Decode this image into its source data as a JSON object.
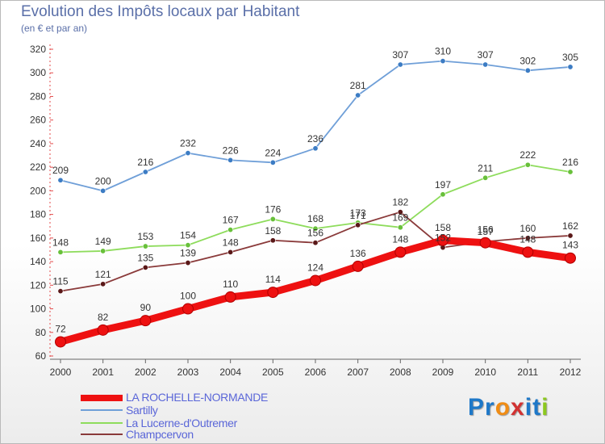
{
  "header": {
    "title": "Evolution des Impôts locaux par Habitant",
    "subtitle": "(en € et par an)"
  },
  "logo": {
    "text": "Proxiti",
    "letters": [
      "P",
      "r",
      "o",
      "x",
      "i",
      "t",
      "i"
    ],
    "letter_colors": [
      "#1e78c8",
      "#1e78c8",
      "#f08c14",
      "#d23232",
      "#1e78c8",
      "#1e78c8",
      "#8cc81e"
    ]
  },
  "chart_data": {
    "type": "line",
    "categories": [
      "2000",
      "2001",
      "2002",
      "2003",
      "2004",
      "2005",
      "2006",
      "2007",
      "2008",
      "2009",
      "2010",
      "2011",
      "2012"
    ],
    "ylim": [
      60,
      320
    ],
    "yticks": [
      60,
      80,
      100,
      120,
      140,
      160,
      180,
      200,
      220,
      240,
      260,
      280,
      300,
      320
    ],
    "grid": false,
    "legend_position": "bottom",
    "series": [
      {
        "name": "Sartilly",
        "color": "#6f9fd8",
        "marker": "#3c7cc4",
        "values": [
          209,
          200,
          216,
          232,
          226,
          224,
          236,
          281,
          307,
          310,
          307,
          302,
          305
        ]
      },
      {
        "name": "La Lucerne-d'Outremer",
        "color": "#8edc5c",
        "marker": "#68c03a",
        "values": [
          148,
          149,
          153,
          154,
          167,
          176,
          168,
          173,
          169,
          197,
          211,
          222,
          216
        ]
      },
      {
        "name": "Champcervon",
        "color": "#8a3a3a",
        "marker": "#5a1818",
        "values": [
          115,
          121,
          135,
          139,
          148,
          158,
          156,
          171,
          182,
          152,
          157,
          160,
          162
        ]
      },
      {
        "name": "LA ROCHELLE-NORMANDE",
        "color": "#ee1111",
        "marker": "#ee1111",
        "values": [
          72,
          82,
          90,
          100,
          110,
          114,
          124,
          136,
          148,
          158,
          156,
          148,
          143
        ]
      }
    ]
  }
}
